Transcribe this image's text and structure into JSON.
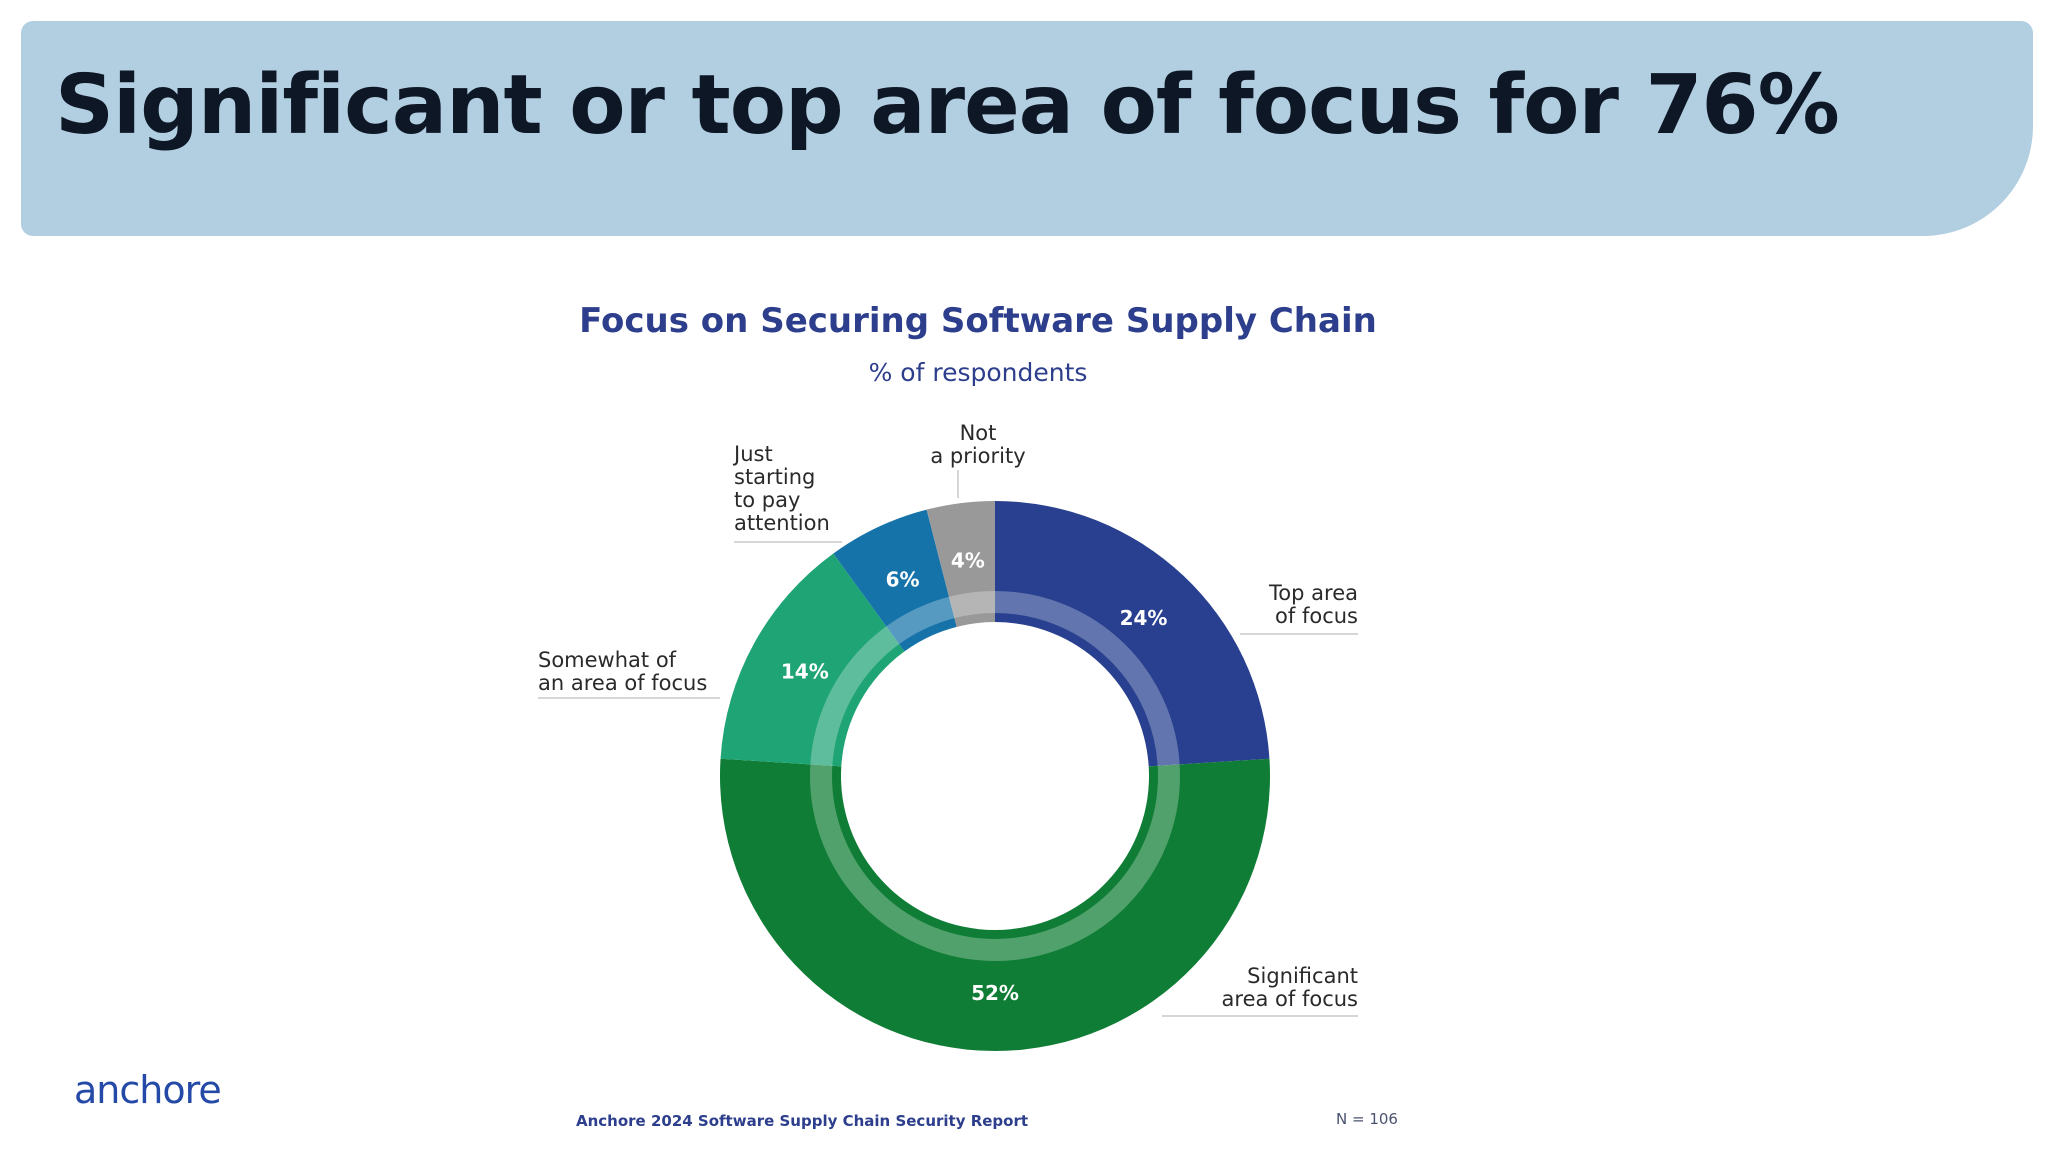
{
  "slide": {
    "heading": "Significant or top area of focus for 76%",
    "logo": "anchore",
    "source": "Anchore 2024 Software Supply Chain Security Report",
    "sample_size": "N = 106"
  },
  "colors": {
    "banner": "#b2cfe1",
    "title": "#2c3e8c",
    "slice_label": "#ffffff"
  },
  "chart_data": {
    "type": "pie",
    "style": "donut",
    "title": "Focus on Securing Software Supply Chain",
    "subtitle": "% of respondents",
    "slices": [
      {
        "label": "Top area of focus",
        "label_lines": [
          "Top area",
          "of focus"
        ],
        "value": 24,
        "display": "24%",
        "color": "#28408f"
      },
      {
        "label": "Significant area of focus",
        "label_lines": [
          "Significant",
          "area of focus"
        ],
        "value": 52,
        "display": "52%",
        "color": "#0f7d35"
      },
      {
        "label": "Somewhat of an area of focus",
        "label_lines": [
          "Somewhat of",
          "an area of focus"
        ],
        "value": 14,
        "display": "14%",
        "color": "#1fa476"
      },
      {
        "label": "Just starting to pay attention",
        "label_lines": [
          "Just",
          "starting",
          "to pay",
          "attention"
        ],
        "value": 6,
        "display": "6%",
        "color": "#1673a9"
      },
      {
        "label": "Not a priority",
        "label_lines": [
          "Not",
          "a priority"
        ],
        "value": 4,
        "display": "4%",
        "color": "#999999"
      }
    ]
  }
}
